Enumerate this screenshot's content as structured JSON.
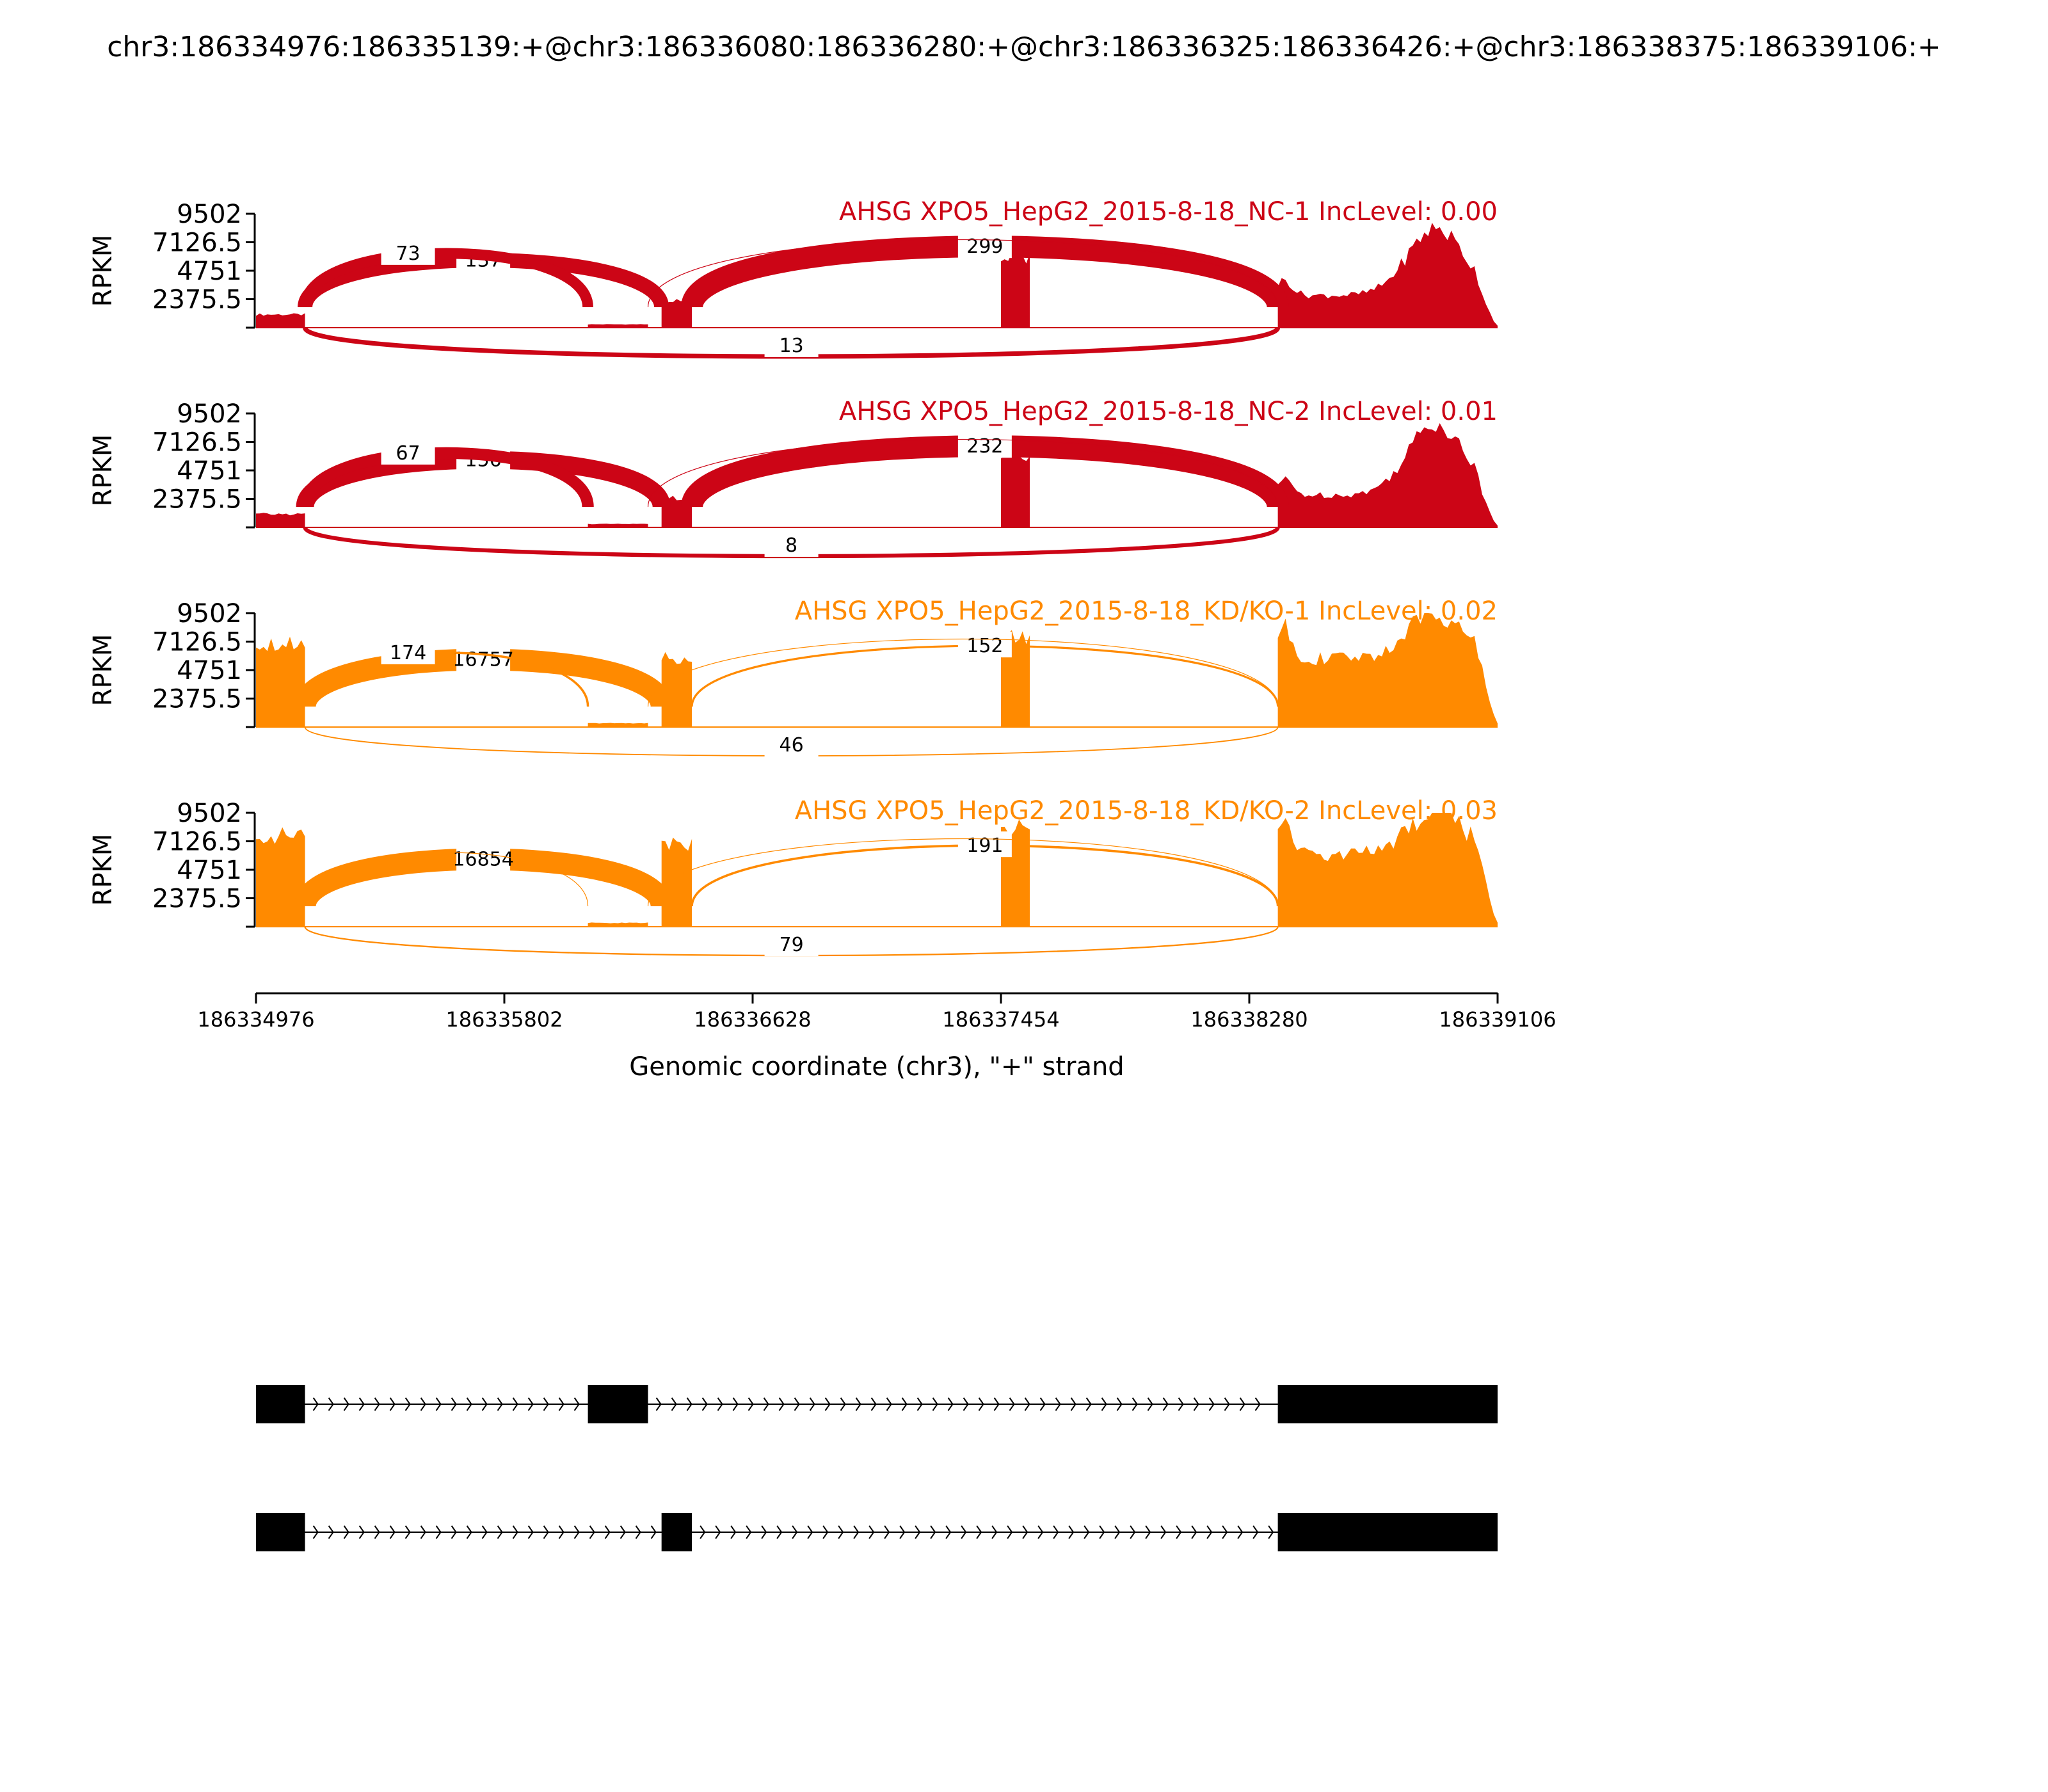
{
  "chart_data": {
    "type": "sashimi",
    "title": "chr3:186334976:186335139:+@chr3:186336080:186336280:+@chr3:186336325:186336426:+@chr3:186338375:186339106:+",
    "xlabel": "Genomic coordinate (chr3), \"+\" strand",
    "ylabel": "RPKM",
    "x_range": [
      186334976,
      186339106
    ],
    "x_ticks": [
      "186334976",
      "186335802",
      "186336628",
      "186337454",
      "186338280",
      "186339106"
    ],
    "y_range": [
      0,
      9502
    ],
    "y_ticks": [
      "9502",
      "7126.5",
      "4751",
      "2375.5"
    ],
    "colors": {
      "nc": "#cc0516",
      "kd": "#ff8a00",
      "gene": "#000000"
    },
    "panels": [
      {
        "label": "AHSG XPO5_HepG2_2015-8-18_NC-1 IncLevel: 0.00",
        "group": "nc",
        "exon_coverage": [
          {
            "start": 186334976,
            "end": 186335139,
            "mean": 1100
          },
          {
            "start": 186336080,
            "end": 186336280,
            "mean": 280
          },
          {
            "start": 186336325,
            "end": 186336426,
            "mean": 2200
          },
          {
            "start": 186337454,
            "end": 186337550,
            "mean": 5800
          },
          {
            "start": 186338375,
            "end": 186339106,
            "mean": 3600,
            "peak": 8300
          }
        ],
        "junctions": [
          {
            "from": 186335139,
            "to": 186336325,
            "count": "137",
            "side": "above"
          },
          {
            "from": 186335139,
            "to": 186336080,
            "count": "73",
            "side": "above"
          },
          {
            "from": 186336426,
            "to": 186338375,
            "count": "299",
            "side": "above"
          },
          {
            "from": 186336280,
            "to": 186338375,
            "count": "",
            "side": "above"
          },
          {
            "from": 186335139,
            "to": 186338375,
            "count": "13",
            "side": "below"
          }
        ]
      },
      {
        "label": "AHSG XPO5_HepG2_2015-8-18_NC-2 IncLevel: 0.01",
        "group": "nc",
        "exon_coverage": [
          {
            "start": 186334976,
            "end": 186335139,
            "mean": 1100
          },
          {
            "start": 186336080,
            "end": 186336280,
            "mean": 280
          },
          {
            "start": 186336325,
            "end": 186336426,
            "mean": 2400
          },
          {
            "start": 186337454,
            "end": 186337550,
            "mean": 6000
          },
          {
            "start": 186338375,
            "end": 186339106,
            "mean": 3600,
            "peak": 8700
          }
        ],
        "junctions": [
          {
            "from": 186335139,
            "to": 186336325,
            "count": "156",
            "side": "above"
          },
          {
            "from": 186335139,
            "to": 186336080,
            "count": "67",
            "side": "above"
          },
          {
            "from": 186336426,
            "to": 186338375,
            "count": "232",
            "side": "above"
          },
          {
            "from": 186336280,
            "to": 186338375,
            "count": "",
            "side": "above"
          },
          {
            "from": 186335139,
            "to": 186338375,
            "count": "8",
            "side": "below"
          }
        ]
      },
      {
        "label": "AHSG XPO5_HepG2_2015-8-18_KD/KO-1 IncLevel: 0.02",
        "group": "kd",
        "exon_coverage": [
          {
            "start": 186334976,
            "end": 186335139,
            "mean": 7000
          },
          {
            "start": 186336080,
            "end": 186336280,
            "mean": 320
          },
          {
            "start": 186336325,
            "end": 186336426,
            "mean": 5800
          },
          {
            "start": 186337454,
            "end": 186337550,
            "mean": 7400
          },
          {
            "start": 186338375,
            "end": 186339106,
            "mean": 7600,
            "peak": 9502
          }
        ],
        "junctions": [
          {
            "from": 186335139,
            "to": 186336325,
            "count": "16757",
            "side": "above"
          },
          {
            "from": 186335139,
            "to": 186336080,
            "count": "174",
            "side": "above"
          },
          {
            "from": 186336426,
            "to": 186338375,
            "count": "152",
            "side": "above"
          },
          {
            "from": 186336280,
            "to": 186338375,
            "count": "",
            "side": "above"
          },
          {
            "from": 186335139,
            "to": 186338375,
            "count": "46",
            "side": "below"
          }
        ]
      },
      {
        "label": "AHSG XPO5_HepG2_2015-8-18_KD/KO-2 IncLevel: 0.03",
        "group": "kd",
        "exon_coverage": [
          {
            "start": 186334976,
            "end": 186335139,
            "mean": 7600
          },
          {
            "start": 186336080,
            "end": 186336280,
            "mean": 320
          },
          {
            "start": 186336325,
            "end": 186336426,
            "mean": 6800
          },
          {
            "start": 186337454,
            "end": 186337550,
            "mean": 8200
          },
          {
            "start": 186338375,
            "end": 186339106,
            "mean": 8000,
            "peak": 9502
          }
        ],
        "junctions": [
          {
            "from": 186335139,
            "to": 186336325,
            "count": "16854",
            "side": "above"
          },
          {
            "from": 186335139,
            "to": 186336080,
            "count": "",
            "side": "above"
          },
          {
            "from": 186336426,
            "to": 186338375,
            "count": "191",
            "side": "above"
          },
          {
            "from": 186336280,
            "to": 186338375,
            "count": "",
            "side": "above"
          },
          {
            "from": 186335139,
            "to": 186338375,
            "count": "79",
            "side": "below"
          }
        ]
      }
    ],
    "isoforms": [
      {
        "exons": [
          [
            186334976,
            186335139
          ],
          [
            186336080,
            186336280
          ],
          [
            186338375,
            186339106
          ]
        ]
      },
      {
        "exons": [
          [
            186334976,
            186335139
          ],
          [
            186336325,
            186336426
          ],
          [
            186338375,
            186339106
          ]
        ]
      }
    ]
  }
}
